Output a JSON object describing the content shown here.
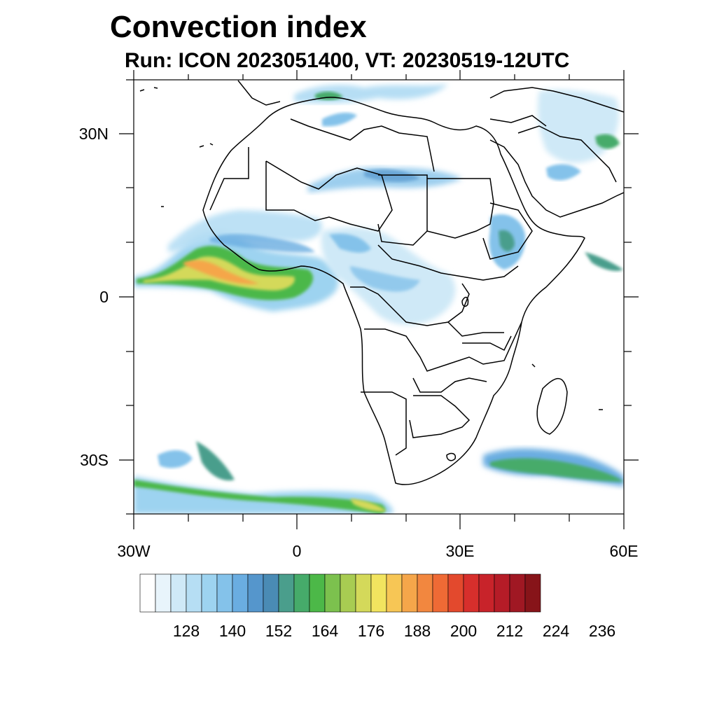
{
  "title": "Convection index",
  "subtitle": "Run: ICON 2023051400,  VT: 20230519-12UTC",
  "map": {
    "region": "Africa",
    "lon_range": [
      -30,
      60
    ],
    "lat_range": [
      -40,
      40
    ],
    "lat_ticks": [
      {
        "label": "30N",
        "value": 30
      },
      {
        "label": "0",
        "value": 0
      },
      {
        "label": "30S",
        "value": -30
      }
    ],
    "lon_ticks": [
      {
        "label": "30W",
        "value": -30
      },
      {
        "label": "0",
        "value": 0
      },
      {
        "label": "30E",
        "value": 30
      },
      {
        "label": "60E",
        "value": 60
      }
    ]
  },
  "colorbar": {
    "colors": [
      "#ffffff",
      "#e8f4fb",
      "#cfe9f7",
      "#b6def4",
      "#9dd3f0",
      "#84c2ea",
      "#6aade1",
      "#5596cc",
      "#4a8bb5",
      "#4a9e8c",
      "#46ab6a",
      "#4cb848",
      "#7cc14e",
      "#a8cc52",
      "#d4d95a",
      "#f2e45f",
      "#f7c655",
      "#f5a64a",
      "#f2873f",
      "#ef6a35",
      "#e3492d",
      "#d72f2c",
      "#c8232a",
      "#b51c27",
      "#a01823",
      "#871419"
    ],
    "labels": [
      "128",
      "140",
      "152",
      "164",
      "176",
      "188",
      "200",
      "212",
      "224",
      "236"
    ]
  }
}
